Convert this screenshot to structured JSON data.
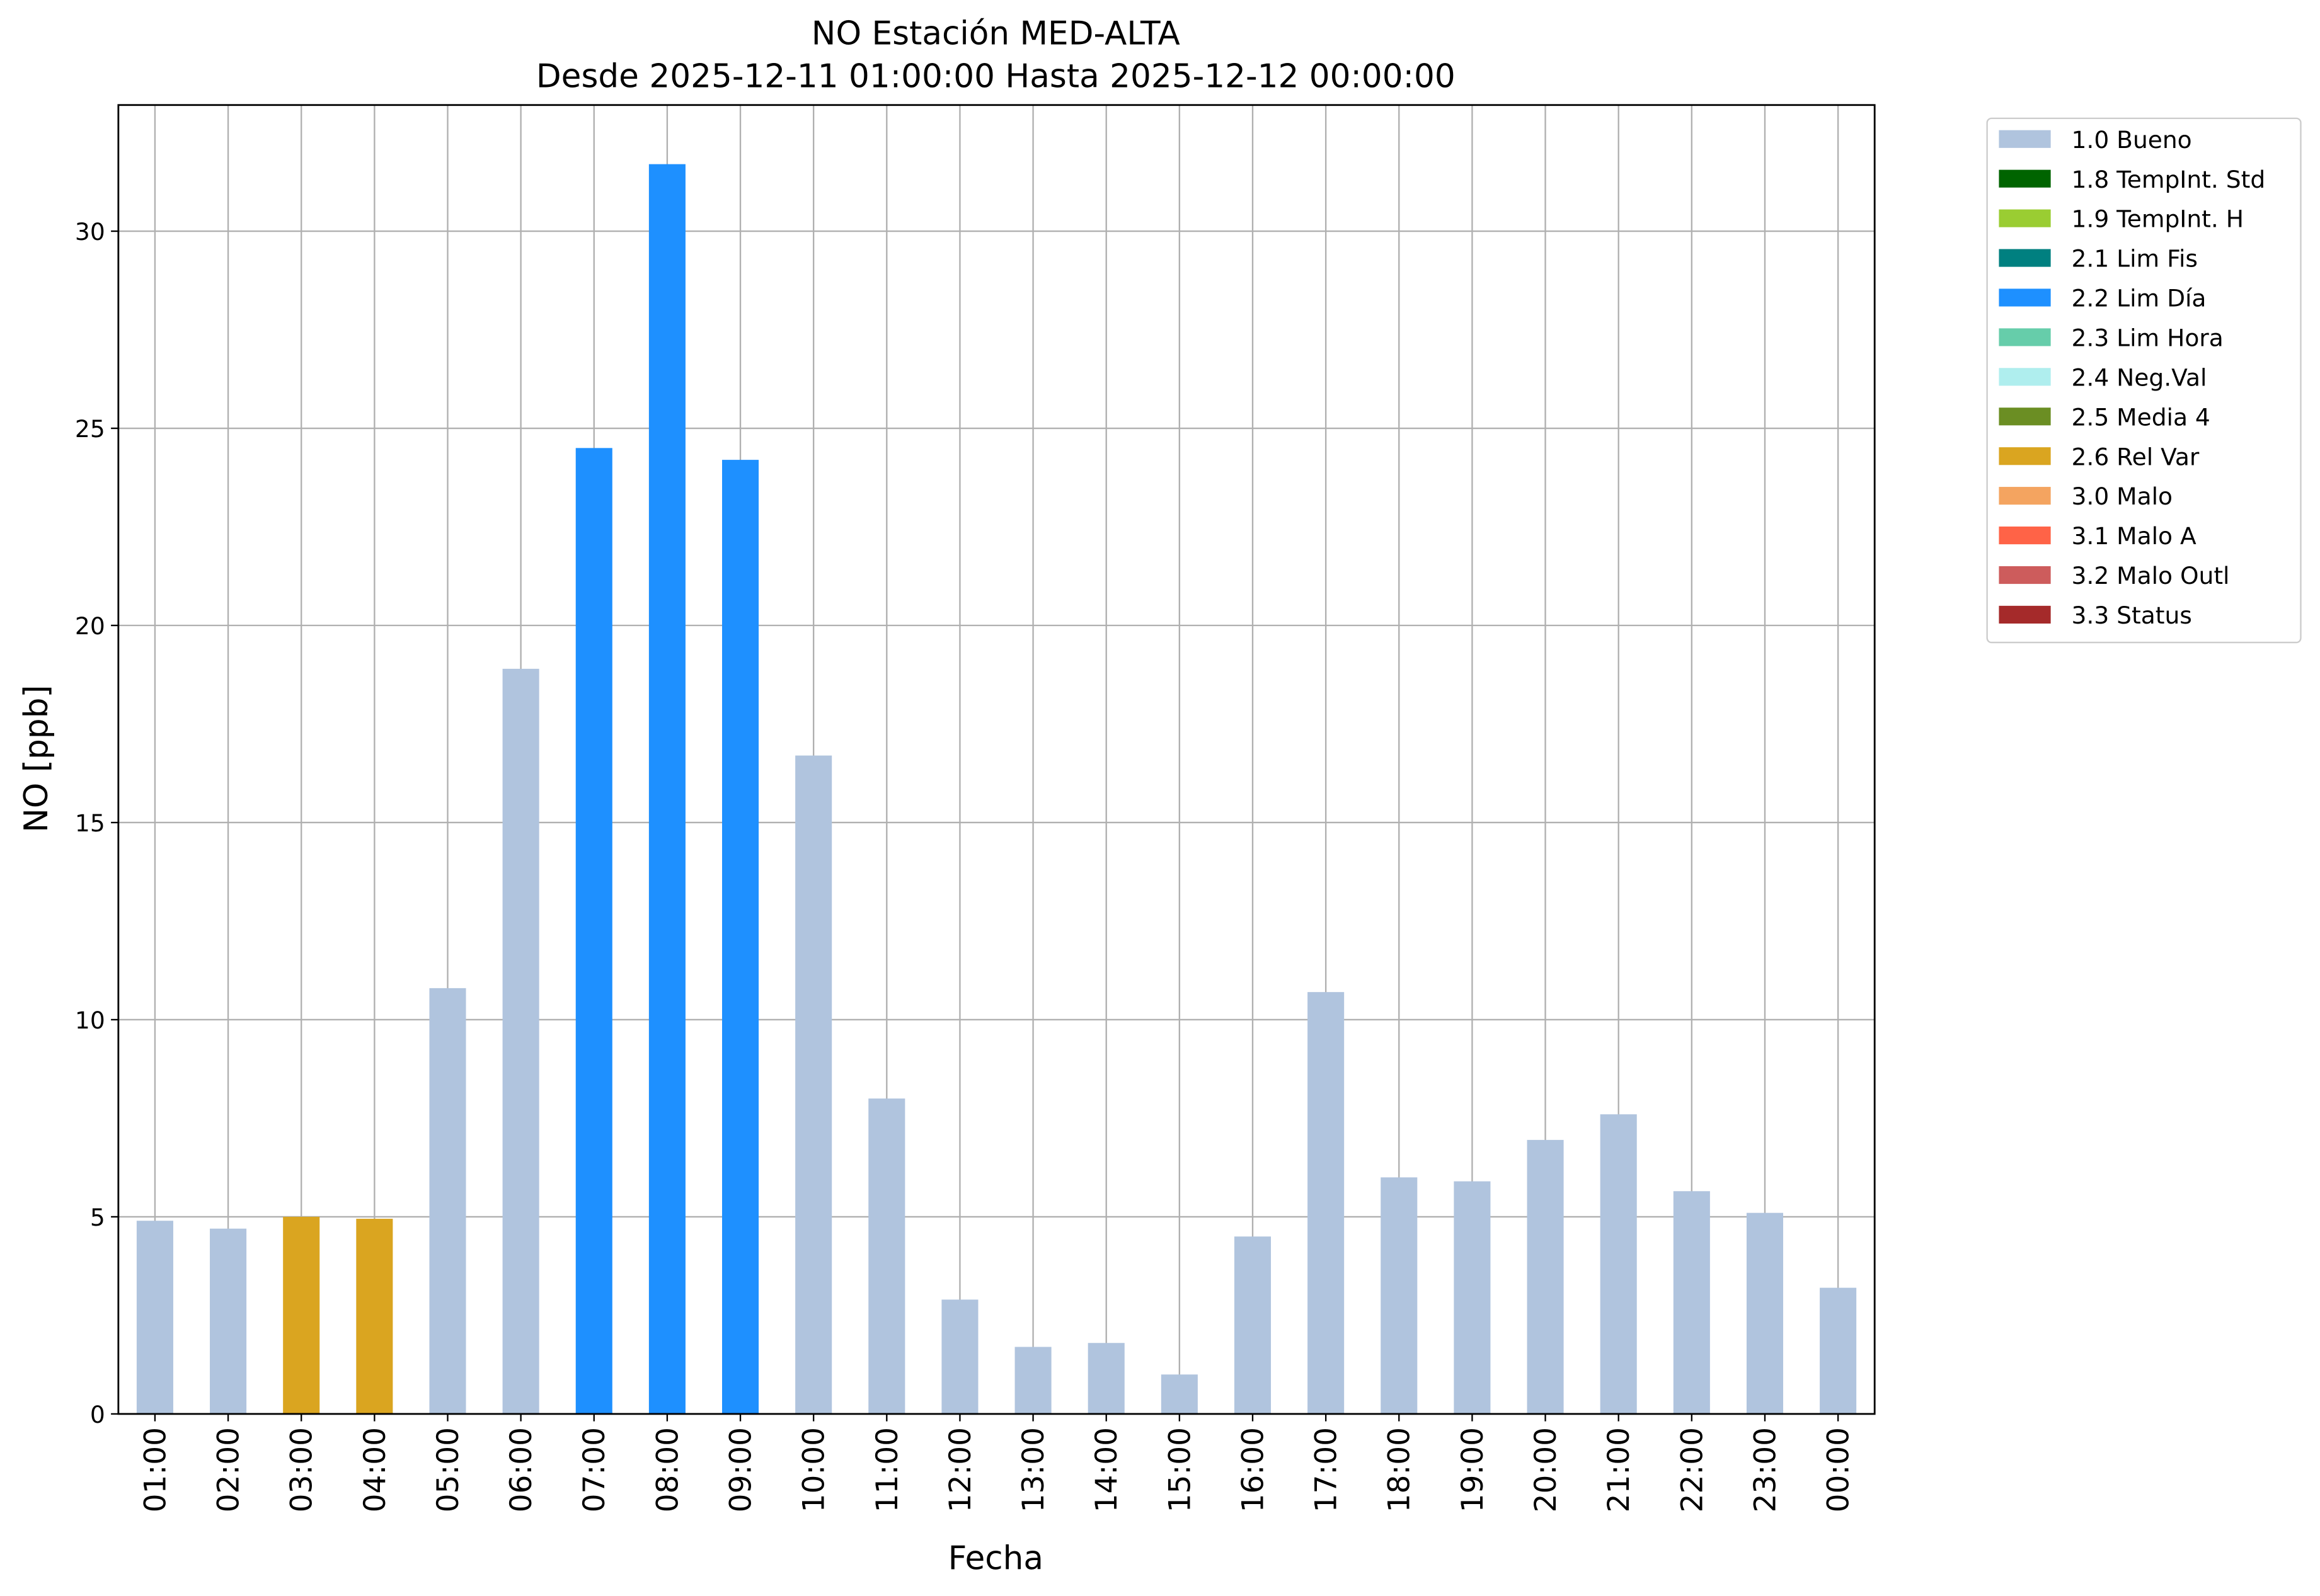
{
  "chart_data": {
    "type": "bar",
    "title": "NO Estación MED-ALTA",
    "subtitle": "Desde 2025-12-11 01:00:00 Hasta 2025-12-12 00:00:00",
    "x_label": "Fecha",
    "y_label": "NO [ppb]",
    "categories": [
      "01:00",
      "02:00",
      "03:00",
      "04:00",
      "05:00",
      "06:00",
      "07:00",
      "08:00",
      "09:00",
      "10:00",
      "11:00",
      "12:00",
      "13:00",
      "14:00",
      "15:00",
      "16:00",
      "17:00",
      "18:00",
      "19:00",
      "20:00",
      "21:00",
      "22:00",
      "23:00",
      "00:00"
    ],
    "series": [
      {
        "name": "1.0 Bueno",
        "color": "#b0c4de",
        "values": [
          4.9,
          4.7,
          null,
          null,
          10.8,
          18.9,
          null,
          null,
          null,
          16.7,
          8.0,
          2.9,
          1.7,
          1.8,
          1.0,
          4.5,
          10.7,
          6.0,
          5.9,
          6.95,
          7.6,
          5.65,
          5.1,
          3.2
        ]
      },
      {
        "name": "1.8 TempInt. Std",
        "color": "#006400",
        "values": [
          null,
          null,
          null,
          null,
          null,
          null,
          null,
          null,
          null,
          null,
          null,
          null,
          null,
          null,
          null,
          null,
          null,
          null,
          null,
          null,
          null,
          null,
          null,
          null
        ]
      },
      {
        "name": "1.9 TempInt. H",
        "color": "#9acd32",
        "values": [
          null,
          null,
          null,
          null,
          null,
          null,
          null,
          null,
          null,
          null,
          null,
          null,
          null,
          null,
          null,
          null,
          null,
          null,
          null,
          null,
          null,
          null,
          null,
          null
        ]
      },
      {
        "name": "2.1 Lim Fis",
        "color": "#008080",
        "values": [
          null,
          null,
          null,
          null,
          null,
          null,
          null,
          null,
          null,
          null,
          null,
          null,
          null,
          null,
          null,
          null,
          null,
          null,
          null,
          null,
          null,
          null,
          null,
          null
        ]
      },
      {
        "name": "2.2 Lim Día",
        "color": "#1e90ff",
        "values": [
          null,
          null,
          null,
          null,
          null,
          null,
          24.5,
          31.7,
          24.2,
          null,
          null,
          null,
          null,
          null,
          null,
          null,
          null,
          null,
          null,
          null,
          null,
          null,
          null,
          null
        ]
      },
      {
        "name": "2.3 Lim Hora",
        "color": "#66cdaa",
        "values": [
          null,
          null,
          null,
          null,
          null,
          null,
          null,
          null,
          null,
          null,
          null,
          null,
          null,
          null,
          null,
          null,
          null,
          null,
          null,
          null,
          null,
          null,
          null,
          null
        ]
      },
      {
        "name": "2.4 Neg.Val",
        "color": "#afeeee",
        "values": [
          null,
          null,
          null,
          null,
          null,
          null,
          null,
          null,
          null,
          null,
          null,
          null,
          null,
          null,
          null,
          null,
          null,
          null,
          null,
          null,
          null,
          null,
          null,
          null
        ]
      },
      {
        "name": "2.5 Media 4",
        "color": "#6b8e23",
        "values": [
          null,
          null,
          null,
          null,
          null,
          null,
          null,
          null,
          null,
          null,
          null,
          null,
          null,
          null,
          null,
          null,
          null,
          null,
          null,
          null,
          null,
          null,
          null,
          null
        ]
      },
      {
        "name": "2.6 Rel Var",
        "color": "#daa520",
        "values": [
          null,
          null,
          5.0,
          4.95,
          null,
          null,
          null,
          null,
          null,
          null,
          null,
          null,
          null,
          null,
          null,
          null,
          null,
          null,
          null,
          null,
          null,
          null,
          null,
          null
        ]
      },
      {
        "name": "3.0 Malo",
        "color": "#f4a460",
        "values": [
          null,
          null,
          null,
          null,
          null,
          null,
          null,
          null,
          null,
          null,
          null,
          null,
          null,
          null,
          null,
          null,
          null,
          null,
          null,
          null,
          null,
          null,
          null,
          null
        ]
      },
      {
        "name": "3.1 Malo A",
        "color": "#ff6347",
        "values": [
          null,
          null,
          null,
          null,
          null,
          null,
          null,
          null,
          null,
          null,
          null,
          null,
          null,
          null,
          null,
          null,
          null,
          null,
          null,
          null,
          null,
          null,
          null,
          null
        ]
      },
      {
        "name": "3.2 Malo Outl",
        "color": "#cd5c5c",
        "values": [
          null,
          null,
          null,
          null,
          null,
          null,
          null,
          null,
          null,
          null,
          null,
          null,
          null,
          null,
          null,
          null,
          null,
          null,
          null,
          null,
          null,
          null,
          null,
          null
        ]
      },
      {
        "name": "3.3 Status",
        "color": "#a52a2a",
        "values": [
          null,
          null,
          null,
          null,
          null,
          null,
          null,
          null,
          null,
          null,
          null,
          null,
          null,
          null,
          null,
          null,
          null,
          null,
          null,
          null,
          null,
          null,
          null,
          null
        ]
      }
    ],
    "ylim": [
      0,
      33.2
    ],
    "yticks": [
      0,
      5,
      10,
      15,
      20,
      25,
      30
    ],
    "grid": true,
    "legend": "outside-upper-right"
  }
}
